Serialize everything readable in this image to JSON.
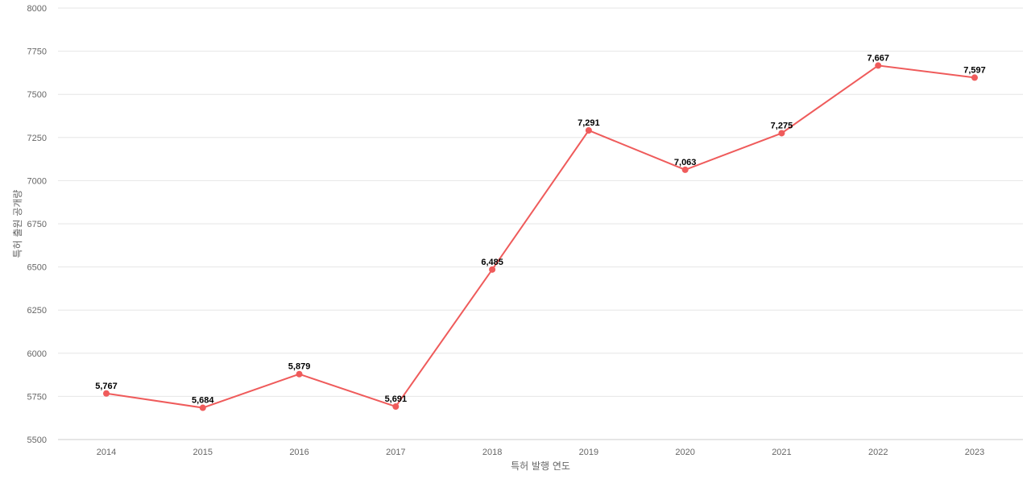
{
  "chart_data": {
    "type": "line",
    "title": "",
    "xlabel": "특허 발행 연도",
    "ylabel": "특허 출원 공개량",
    "categories": [
      "2014",
      "2015",
      "2016",
      "2017",
      "2018",
      "2019",
      "2020",
      "2021",
      "2022",
      "2023"
    ],
    "series": [
      {
        "values": [
          5767,
          5684,
          5879,
          5691,
          6485,
          7291,
          7063,
          7275,
          7667,
          7597
        ],
        "labels": [
          "5,767",
          "5,684",
          "5,879",
          "5,691",
          "6,485",
          "7,291",
          "7,063",
          "7,275",
          "7,667",
          "7,597"
        ]
      }
    ],
    "ylim": [
      5500,
      8000
    ],
    "yticks": [
      "5500",
      "5750",
      "6000",
      "6250",
      "6500",
      "6750",
      "7000",
      "7250",
      "7500",
      "7750",
      "8000"
    ],
    "grid": true,
    "legend": "none",
    "colors": {
      "line": "#ef5b5b",
      "grid": "#e6e6e6",
      "axis": "#cccccc"
    }
  }
}
